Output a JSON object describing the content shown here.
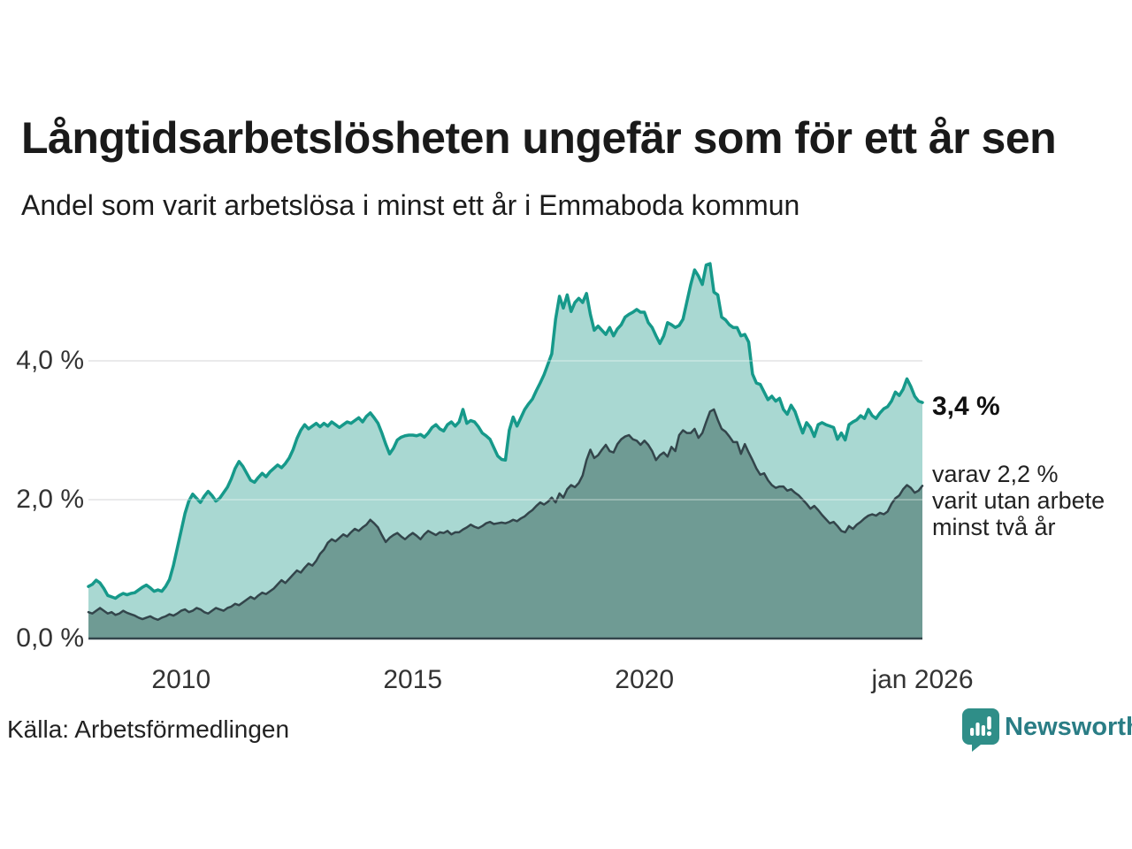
{
  "title": "Långtidsarbetslösheten ungefär som för ett år sen",
  "subtitle": "Andel som varit arbetslösa i minst ett år i Emmaboda kommun",
  "annotations": {
    "total": "3,4 %",
    "subset_lines": [
      "varav 2,2 %",
      "varit utan arbete",
      "minst två år"
    ]
  },
  "source": "Källa: Arbetsförmedlingen",
  "logo": {
    "text": "Newsworthy",
    "icon": "newsworthy-bar-chart-bubble",
    "color": "#2f8e88",
    "text_color": "#2a7d85"
  },
  "colors": {
    "grid": "#e2e2e4",
    "grid_overlay": "rgba(255,255,255,0.28)",
    "baseline": "#33454b",
    "axis_text": "#333333",
    "title_text": "#1a1a1a"
  },
  "chart_data": {
    "type": "area",
    "title": "Långtidsarbetslösheten ungefär som för ett år sen",
    "subtitle": "Andel som varit arbetslösa i minst ett år i Emmaboda kommun",
    "unit": "%",
    "x_start": 2008.0,
    "x_end": 2026.0,
    "interval_months": 1,
    "ylim": [
      0,
      5.6
    ],
    "grid": "horizontal",
    "legend": "inline-annotations",
    "x_ticks": [
      {
        "label": "2010",
        "year": 2010
      },
      {
        "label": "2015",
        "year": 2015
      },
      {
        "label": "2020",
        "year": 2020
      },
      {
        "label": "jan 2026",
        "year": 2026
      }
    ],
    "y_ticks": [
      {
        "label": "0,0 %",
        "value": 0
      },
      {
        "label": "2,0 %",
        "value": 2
      },
      {
        "label": "4,0 %",
        "value": 4
      }
    ],
    "series": [
      {
        "name": "Andel som varit arbetslösa i minst ett år",
        "end_value": 3.4,
        "stroke": "#16998a",
        "fill": "#a9d8d2",
        "stroke_width": 3.5,
        "values": [
          0.75,
          0.78,
          0.84,
          0.8,
          0.72,
          0.62,
          0.6,
          0.58,
          0.62,
          0.65,
          0.63,
          0.65,
          0.66,
          0.7,
          0.74,
          0.77,
          0.73,
          0.68,
          0.7,
          0.68,
          0.75,
          0.85,
          1.05,
          1.3,
          1.55,
          1.8,
          1.98,
          2.08,
          2.02,
          1.96,
          2.05,
          2.12,
          2.06,
          1.98,
          2.02,
          2.1,
          2.18,
          2.3,
          2.45,
          2.55,
          2.48,
          2.38,
          2.28,
          2.25,
          2.32,
          2.38,
          2.33,
          2.4,
          2.45,
          2.5,
          2.46,
          2.52,
          2.6,
          2.72,
          2.88,
          3.0,
          3.08,
          3.02,
          3.06,
          3.1,
          3.05,
          3.1,
          3.06,
          3.12,
          3.08,
          3.04,
          3.08,
          3.12,
          3.1,
          3.14,
          3.18,
          3.12,
          3.2,
          3.25,
          3.18,
          3.1,
          2.96,
          2.8,
          2.66,
          2.74,
          2.86,
          2.9,
          2.92,
          2.93,
          2.93,
          2.92,
          2.94,
          2.9,
          2.96,
          3.04,
          3.08,
          3.02,
          2.99,
          3.08,
          3.12,
          3.06,
          3.12,
          3.3,
          3.1,
          3.14,
          3.12,
          3.05,
          2.96,
          2.92,
          2.87,
          2.75,
          2.63,
          2.58,
          2.57,
          3.0,
          3.19,
          3.06,
          3.18,
          3.3,
          3.38,
          3.45,
          3.57,
          3.68,
          3.8,
          3.95,
          4.1,
          4.6,
          4.93,
          4.76,
          4.95,
          4.71,
          4.84,
          4.9,
          4.84,
          4.97,
          4.67,
          4.44,
          4.5,
          4.44,
          4.38,
          4.48,
          4.36,
          4.46,
          4.52,
          4.63,
          4.67,
          4.7,
          4.74,
          4.7,
          4.7,
          4.55,
          4.48,
          4.36,
          4.25,
          4.36,
          4.55,
          4.52,
          4.48,
          4.51,
          4.6,
          4.85,
          5.1,
          5.31,
          5.22,
          5.1,
          5.38,
          5.4,
          4.99,
          4.95,
          4.63,
          4.59,
          4.52,
          4.48,
          4.48,
          4.36,
          4.38,
          4.27,
          3.81,
          3.68,
          3.66,
          3.55,
          3.44,
          3.49,
          3.42,
          3.46,
          3.3,
          3.23,
          3.36,
          3.27,
          3.11,
          2.96,
          3.11,
          3.04,
          2.91,
          3.08,
          3.11,
          3.08,
          3.06,
          3.04,
          2.87,
          2.96,
          2.86,
          3.08,
          3.12,
          3.15,
          3.21,
          3.17,
          3.3,
          3.21,
          3.17,
          3.25,
          3.31,
          3.34,
          3.42,
          3.55,
          3.5,
          3.59,
          3.74,
          3.63,
          3.49,
          3.42,
          3.4
        ]
      },
      {
        "name": "varav utan arbete minst två år",
        "end_value": 2.2,
        "stroke": "#33454b",
        "fill": "#6f9b94",
        "stroke_width": 2.5,
        "values": [
          0.38,
          0.36,
          0.4,
          0.44,
          0.4,
          0.36,
          0.38,
          0.34,
          0.36,
          0.4,
          0.37,
          0.35,
          0.33,
          0.3,
          0.28,
          0.3,
          0.32,
          0.29,
          0.27,
          0.3,
          0.32,
          0.35,
          0.33,
          0.36,
          0.4,
          0.42,
          0.38,
          0.4,
          0.44,
          0.42,
          0.38,
          0.36,
          0.4,
          0.44,
          0.42,
          0.4,
          0.44,
          0.46,
          0.5,
          0.48,
          0.52,
          0.56,
          0.6,
          0.57,
          0.62,
          0.66,
          0.64,
          0.68,
          0.72,
          0.78,
          0.84,
          0.8,
          0.86,
          0.92,
          0.98,
          0.95,
          1.02,
          1.08,
          1.05,
          1.12,
          1.22,
          1.28,
          1.38,
          1.43,
          1.4,
          1.45,
          1.5,
          1.47,
          1.53,
          1.58,
          1.55,
          1.6,
          1.64,
          1.71,
          1.66,
          1.6,
          1.49,
          1.39,
          1.45,
          1.49,
          1.52,
          1.47,
          1.43,
          1.48,
          1.52,
          1.48,
          1.43,
          1.5,
          1.55,
          1.52,
          1.49,
          1.53,
          1.52,
          1.55,
          1.5,
          1.53,
          1.53,
          1.57,
          1.6,
          1.64,
          1.61,
          1.59,
          1.62,
          1.66,
          1.68,
          1.65,
          1.66,
          1.67,
          1.66,
          1.68,
          1.71,
          1.69,
          1.73,
          1.76,
          1.81,
          1.85,
          1.91,
          1.96,
          1.93,
          1.97,
          2.03,
          1.96,
          2.09,
          2.03,
          2.15,
          2.21,
          2.18,
          2.24,
          2.35,
          2.57,
          2.72,
          2.6,
          2.64,
          2.72,
          2.79,
          2.7,
          2.68,
          2.8,
          2.87,
          2.91,
          2.93,
          2.87,
          2.85,
          2.79,
          2.85,
          2.79,
          2.7,
          2.57,
          2.64,
          2.68,
          2.62,
          2.76,
          2.7,
          2.93,
          3.0,
          2.96,
          2.96,
          3.02,
          2.89,
          2.96,
          3.12,
          3.27,
          3.3,
          3.15,
          3.02,
          2.98,
          2.91,
          2.83,
          2.83,
          2.66,
          2.8,
          2.68,
          2.57,
          2.45,
          2.36,
          2.38,
          2.28,
          2.21,
          2.17,
          2.19,
          2.19,
          2.13,
          2.15,
          2.1,
          2.06,
          2.0,
          1.94,
          1.87,
          1.91,
          1.85,
          1.78,
          1.72,
          1.66,
          1.68,
          1.62,
          1.55,
          1.53,
          1.62,
          1.58,
          1.64,
          1.68,
          1.73,
          1.77,
          1.79,
          1.77,
          1.81,
          1.79,
          1.83,
          1.94,
          2.02,
          2.06,
          2.15,
          2.21,
          2.17,
          2.1,
          2.13,
          2.2
        ]
      }
    ]
  }
}
